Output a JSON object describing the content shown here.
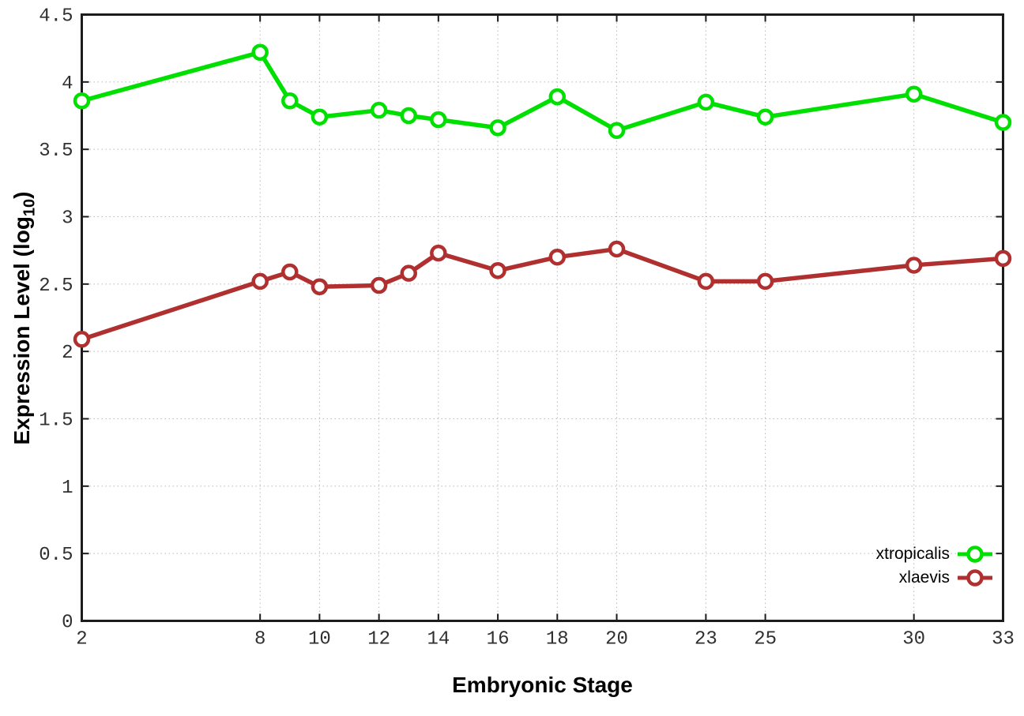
{
  "chart_data": {
    "type": "line",
    "title": "",
    "xlabel": "Embryonic Stage",
    "ylabel": "Expression Level (log10)",
    "ylabel_parts": {
      "main": "Expression Level (log",
      "sub": "10",
      "close": ")"
    },
    "xlim": [
      2,
      33
    ],
    "ylim": [
      0,
      4.5
    ],
    "x_ticks": [
      2,
      8,
      10,
      12,
      14,
      16,
      18,
      20,
      23,
      25,
      30,
      33
    ],
    "x_tick_labels": [
      "2",
      "8",
      "10",
      "12",
      "14",
      "16",
      "18",
      "20",
      "23",
      "25",
      "30",
      "33"
    ],
    "y_ticks": [
      0,
      0.5,
      1,
      1.5,
      2,
      2.5,
      3,
      3.5,
      4,
      4.5
    ],
    "y_tick_labels": [
      "0",
      "0.5",
      "1",
      "1.5",
      "2",
      "2.5",
      "3",
      "3.5",
      "4",
      "4.5"
    ],
    "grid": true,
    "legend_position": "inside-bottom-right",
    "x": [
      2,
      8,
      9,
      10,
      12,
      13,
      14,
      16,
      18,
      20,
      23,
      25,
      30,
      33
    ],
    "series": [
      {
        "name": "xtropicalis",
        "color": "#00e000",
        "values": [
          3.86,
          4.22,
          3.86,
          3.74,
          3.79,
          3.75,
          3.72,
          3.66,
          3.89,
          3.64,
          3.85,
          3.74,
          3.91,
          3.7
        ]
      },
      {
        "name": "xlaevis",
        "color": "#b03030",
        "values": [
          2.09,
          2.52,
          2.59,
          2.48,
          2.49,
          2.58,
          2.73,
          2.6,
          2.7,
          2.76,
          2.52,
          2.52,
          2.64,
          2.69
        ]
      }
    ],
    "style": {
      "axis_color": "#1c1c1c",
      "grid_color": "#b8b8b8",
      "tick_label_color": "#303030",
      "marker": "open-circle",
      "background": "#ffffff"
    }
  }
}
